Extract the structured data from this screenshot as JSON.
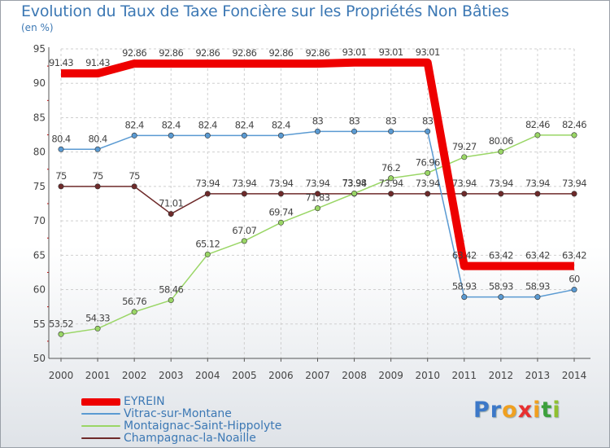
{
  "title": "Evolution du Taux de Taxe Foncière sur les Propriétés Non Bâties",
  "subtitle": "(en %)",
  "logo": "Proxiti",
  "chart_data": {
    "type": "line",
    "title": "Evolution du Taux de Taxe Foncière sur les Propriétés Non Bâties",
    "subtitle": "(en %)",
    "xlabel": "",
    "ylabel": "",
    "ylim": [
      50,
      95
    ],
    "yticks": [
      "50",
      "55",
      "60",
      "65",
      "70",
      "75",
      "80",
      "85",
      "90",
      "95"
    ],
    "categories": [
      "2000",
      "2001",
      "2002",
      "2003",
      "2004",
      "2005",
      "2006",
      "2007",
      "2008",
      "2009",
      "2010",
      "2011",
      "2012",
      "2013",
      "2014"
    ],
    "grid": true,
    "legend_position": "bottom-left",
    "series": [
      {
        "name": "EYREIN",
        "color": "#ee0000",
        "values": [
          91.43,
          91.43,
          92.86,
          92.86,
          92.86,
          92.86,
          92.86,
          92.86,
          93.01,
          93.01,
          93.01,
          63.42,
          63.42,
          63.42,
          63.42
        ],
        "labels": [
          "91.43",
          "91.43",
          "92.86",
          "92.86",
          "92.86",
          "92.86",
          "92.86",
          "92.86",
          "93.01",
          "93.01",
          "93.01",
          "63.42",
          "63.42",
          "63.42",
          "63.42"
        ]
      },
      {
        "name": "Vitrac-sur-Montane",
        "color": "#5a9ad2",
        "values": [
          80.4,
          80.4,
          82.4,
          82.4,
          82.4,
          82.4,
          82.4,
          83,
          83,
          83,
          83,
          58.93,
          58.93,
          58.93,
          60
        ],
        "labels": [
          "80.4",
          "80.4",
          "82.4",
          "82.4",
          "82.4",
          "82.4",
          "82.4",
          "83",
          "83",
          "83",
          "83",
          "58.93",
          "58.93",
          "58.93",
          "60"
        ]
      },
      {
        "name": "Montaignac-Saint-Hippolyte",
        "color": "#9ad666",
        "values": [
          53.52,
          54.33,
          56.76,
          58.46,
          65.12,
          67.07,
          69.74,
          71.83,
          73.98,
          76.2,
          76.96,
          79.27,
          80.06,
          82.46,
          82.46
        ],
        "labels": [
          "53.52",
          "54.33",
          "56.76",
          "58.46",
          "65.12",
          "67.07",
          "69.74",
          "71.83",
          "73.98",
          "76.2",
          "76.96",
          "79.27",
          "80.06",
          "82.46",
          "82.46"
        ]
      },
      {
        "name": "Champagnac-la-Noaille",
        "color": "#6e2a2a",
        "values": [
          75,
          75,
          75,
          71.01,
          73.94,
          73.94,
          73.94,
          73.94,
          73.94,
          73.94,
          73.94,
          73.94,
          73.94,
          73.94,
          73.94
        ],
        "labels": [
          "75",
          "75",
          "75",
          "71.01",
          "73.94",
          "73.94",
          "73.94",
          "73.94",
          "73.94",
          "73.94",
          "73.94",
          "73.94",
          "73.94",
          "73.94",
          "73.94"
        ]
      }
    ]
  }
}
